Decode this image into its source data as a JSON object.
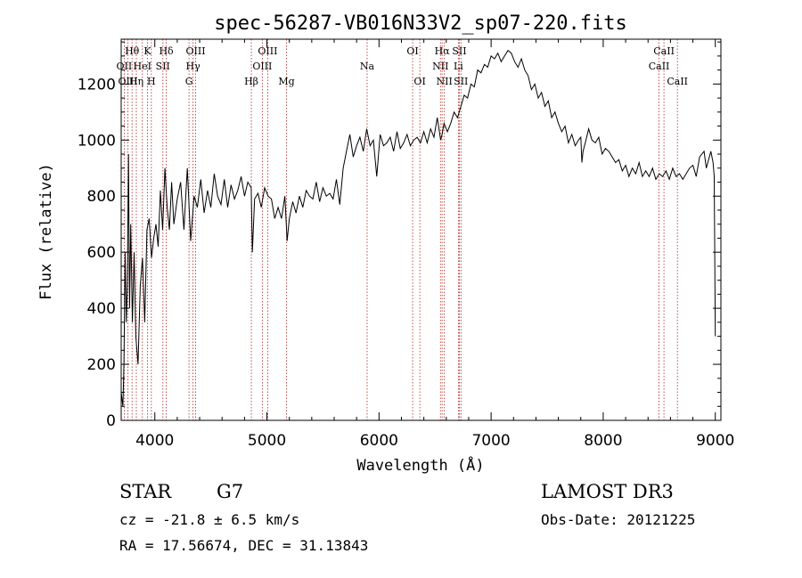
{
  "chart_data": {
    "type": "line",
    "title": "spec-56287-VB016N33V2_sp07-220.fits",
    "xlabel": "Wavelength (Å)",
    "ylabel": "Flux (relative)",
    "xlim": [
      3700,
      9050
    ],
    "ylim": [
      0,
      1360
    ],
    "xticks": [
      4000,
      5000,
      6000,
      7000,
      8000,
      9000
    ],
    "yticks": [
      0,
      200,
      400,
      600,
      800,
      1000,
      1200
    ],
    "grid": false,
    "line_color": "#000000",
    "marker_color": "#b22222",
    "series": [
      {
        "name": "flux",
        "x": [
          3700,
          3715,
          3725,
          3735,
          3745,
          3755,
          3765,
          3775,
          3785,
          3800,
          3815,
          3830,
          3850,
          3870,
          3890,
          3910,
          3930,
          3950,
          3970,
          3990,
          4010,
          4030,
          4050,
          4070,
          4090,
          4110,
          4130,
          4150,
          4170,
          4200,
          4230,
          4260,
          4290,
          4320,
          4350,
          4380,
          4410,
          4440,
          4470,
          4500,
          4530,
          4560,
          4590,
          4620,
          4650,
          4680,
          4710,
          4740,
          4770,
          4800,
          4830,
          4860,
          4870,
          4890,
          4920,
          4950,
          4980,
          5010,
          5040,
          5070,
          5100,
          5130,
          5160,
          5180,
          5200,
          5230,
          5260,
          5290,
          5320,
          5350,
          5380,
          5410,
          5440,
          5470,
          5500,
          5530,
          5560,
          5590,
          5620,
          5650,
          5680,
          5710,
          5740,
          5770,
          5800,
          5830,
          5860,
          5890,
          5920,
          5950,
          5980,
          6010,
          6040,
          6070,
          6100,
          6130,
          6160,
          6190,
          6220,
          6250,
          6280,
          6310,
          6340,
          6370,
          6400,
          6430,
          6460,
          6490,
          6520,
          6550,
          6563,
          6580,
          6610,
          6640,
          6670,
          6700,
          6730,
          6760,
          6790,
          6820,
          6850,
          6880,
          6910,
          6940,
          6970,
          7000,
          7030,
          7060,
          7090,
          7120,
          7150,
          7180,
          7210,
          7240,
          7270,
          7300,
          7330,
          7360,
          7390,
          7420,
          7450,
          7480,
          7510,
          7540,
          7570,
          7600,
          7630,
          7660,
          7690,
          7720,
          7750,
          7780,
          7800,
          7810,
          7820,
          7840,
          7870,
          7900,
          7930,
          7960,
          7990,
          8020,
          8050,
          8080,
          8110,
          8140,
          8170,
          8200,
          8230,
          8260,
          8290,
          8320,
          8350,
          8380,
          8410,
          8440,
          8470,
          8500,
          8530,
          8560,
          8590,
          8620,
          8650,
          8680,
          8710,
          8740,
          8770,
          8800,
          8830,
          8860,
          8880,
          8900,
          8920,
          8940,
          8960,
          8980,
          8990,
          9000
        ],
        "y": [
          100,
          50,
          200,
          600,
          350,
          480,
          950,
          400,
          700,
          350,
          600,
          300,
          200,
          480,
          580,
          350,
          680,
          720,
          580,
          650,
          700,
          620,
          820,
          680,
          900,
          760,
          680,
          850,
          700,
          790,
          850,
          680,
          900,
          640,
          800,
          760,
          860,
          740,
          820,
          760,
          880,
          800,
          770,
          860,
          760,
          840,
          790,
          820,
          870,
          800,
          850,
          830,
          600,
          790,
          810,
          760,
          830,
          800,
          790,
          720,
          760,
          720,
          800,
          640,
          720,
          780,
          740,
          800,
          760,
          820,
          800,
          790,
          850,
          780,
          830,
          800,
          810,
          790,
          860,
          770,
          900,
          960,
          1020,
          940,
          980,
          1010,
          960,
          1040,
          980,
          1000,
          870,
          1020,
          980,
          990,
          1010,
          960,
          1030,
          970,
          990,
          1020,
          980,
          1000,
          1010,
          990,
          1030,
          990,
          1040,
          1010,
          1080,
          1000,
          1020,
          1060,
          1030,
          1060,
          1100,
          1080,
          1120,
          1160,
          1150,
          1200,
          1190,
          1250,
          1240,
          1270,
          1260,
          1300,
          1290,
          1310,
          1280,
          1300,
          1320,
          1310,
          1280,
          1260,
          1290,
          1250,
          1230,
          1180,
          1200,
          1150,
          1170,
          1120,
          1140,
          1080,
          1100,
          1060,
          1030,
          1050,
          990,
          1020,
          980,
          1000,
          1010,
          920,
          960,
          990,
          1040,
          1000,
          990,
          1010,
          950,
          970,
          960,
          940,
          920,
          930,
          890,
          910,
          870,
          900,
          880,
          920,
          870,
          890,
          870,
          900,
          860,
          880,
          870,
          890,
          860,
          900,
          870,
          880,
          860,
          880,
          900,
          910,
          870,
          940,
          950,
          960,
          900,
          930,
          960,
          920,
          870,
          300
        ]
      }
    ],
    "lines": [
      {
        "label": "Hθ",
        "x": 3797,
        "row": 1
      },
      {
        "label": "OII",
        "x": 3727,
        "row": 2
      },
      {
        "label": "OIII",
        "x": 3760,
        "row": 3
      },
      {
        "label": "Hη",
        "x": 3835,
        "row": 3
      },
      {
        "label": "HeI",
        "x": 3889,
        "row": 2
      },
      {
        "label": "K",
        "x": 3934,
        "row": 1
      },
      {
        "label": "H",
        "x": 3969,
        "row": 3
      },
      {
        "label": "SII",
        "x": 4072,
        "row": 2
      },
      {
        "label": "Hδ",
        "x": 4102,
        "row": 1
      },
      {
        "label": "G",
        "x": 4305,
        "row": 3
      },
      {
        "label": "OIII",
        "x": 4364,
        "row": 1
      },
      {
        "label": "Hγ",
        "x": 4341,
        "row": 2
      },
      {
        "label": "Hβ",
        "x": 4861,
        "row": 3
      },
      {
        "label": "OIII",
        "x": 4959,
        "row": 2
      },
      {
        "label": "OIII",
        "x": 5007,
        "row": 1
      },
      {
        "label": "Mg",
        "x": 5175,
        "row": 3
      },
      {
        "label": "Na",
        "x": 5894,
        "row": 2
      },
      {
        "label": "OI",
        "x": 6300,
        "row": 1
      },
      {
        "label": "OI",
        "x": 6364,
        "row": 3
      },
      {
        "label": "NII",
        "x": 6548,
        "row": 2
      },
      {
        "label": "Hα",
        "x": 6563,
        "row": 1
      },
      {
        "label": "NII",
        "x": 6583,
        "row": 3
      },
      {
        "label": "Li",
        "x": 6708,
        "row": 2
      },
      {
        "label": "SII",
        "x": 6717,
        "row": 1
      },
      {
        "label": "SII",
        "x": 6731,
        "row": 3
      },
      {
        "label": "CaII",
        "x": 8498,
        "row": 2
      },
      {
        "label": "CaII",
        "x": 8542,
        "row": 1
      },
      {
        "label": "CaII",
        "x": 8662,
        "row": 3
      }
    ]
  },
  "info": {
    "object_class": "STAR",
    "subclass": "G7",
    "redshift_text": "cz = -21.8 ± 6.5 km/s",
    "coords_text": "RA =  17.56674, DEC =  31.13843",
    "survey": "LAMOST DR3",
    "obs_date_text": "Obs-Date: 20121225"
  }
}
